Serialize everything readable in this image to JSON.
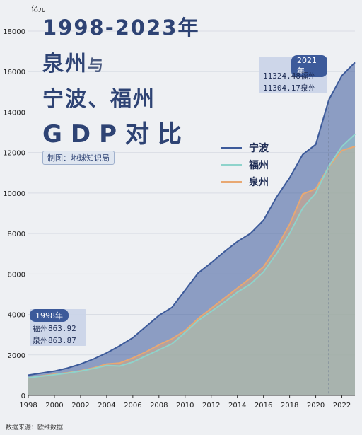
{
  "title": {
    "line1": "1998-2023年",
    "line2_a": "泉州",
    "line2_b": "与",
    "line3": "宁波、福州",
    "line4": "GDP对比"
  },
  "credit": "制图：地球知识局",
  "unit": "亿元",
  "source": "数据来源：欧维数据",
  "callout_2021": {
    "header": "2021年",
    "line1": "11324.48福州",
    "line2": "11304.17泉州"
  },
  "callout_1998": {
    "header": "1998年",
    "line1": "福州863.92",
    "line2": "泉州863.87"
  },
  "colors": {
    "ningbo": "#3c5a9a",
    "fuzhou": "#8ed3cb",
    "quanzhou": "#e8a872",
    "grid": "#d9dde4"
  },
  "chart_data": {
    "type": "area",
    "x": [
      1998,
      1999,
      2000,
      2001,
      2002,
      2003,
      2004,
      2005,
      2006,
      2007,
      2008,
      2009,
      2010,
      2011,
      2012,
      2013,
      2014,
      2015,
      2016,
      2017,
      2018,
      2019,
      2020,
      2021,
      2022,
      2023
    ],
    "xticks": [
      "1998",
      "2000",
      "2002",
      "2004",
      "2006",
      "2008",
      "2010",
      "2012",
      "2014",
      "2016",
      "2018",
      "2020",
      "2022"
    ],
    "yticks": [
      "0",
      "2000",
      "4000",
      "6000",
      "8000",
      "10000",
      "12000",
      "14000",
      "16000",
      "18000"
    ],
    "ylim": [
      0,
      18000
    ],
    "legend_position": "right",
    "series": [
      {
        "name": "宁波",
        "values": [
          1000,
          1100,
          1200,
          1350,
          1550,
          1800,
          2100,
          2450,
          2850,
          3400,
          3950,
          4350,
          5200,
          6050,
          6550,
          7100,
          7600,
          8000,
          8650,
          9800,
          10750,
          11900,
          12400,
          14600,
          15800,
          16450
        ]
      },
      {
        "name": "福州",
        "values": [
          863.92,
          950,
          1020,
          1100,
          1200,
          1330,
          1480,
          1450,
          1650,
          1950,
          2250,
          2550,
          3100,
          3700,
          4150,
          4600,
          5100,
          5500,
          6100,
          7000,
          8000,
          9250,
          10000,
          11324.48,
          12300,
          12900
        ]
      },
      {
        "name": "泉州",
        "values": [
          863.87,
          960,
          1050,
          1120,
          1220,
          1360,
          1550,
          1600,
          1850,
          2150,
          2500,
          2800,
          3200,
          3800,
          4300,
          4800,
          5300,
          5800,
          6350,
          7300,
          8450,
          9950,
          10200,
          11304.17,
          12100,
          12300
        ]
      }
    ]
  }
}
